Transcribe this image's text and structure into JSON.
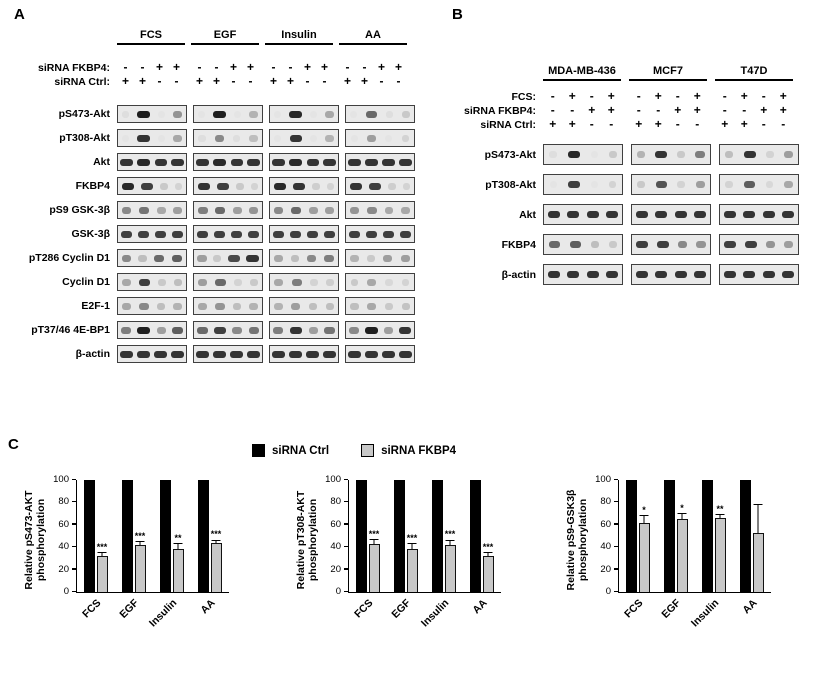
{
  "panelA": {
    "label": "A",
    "groups": [
      "FCS",
      "EGF",
      "Insulin",
      "AA"
    ],
    "condition_rows": [
      {
        "label": "siRNA FKBP4:",
        "pattern": [
          "-",
          "-",
          "+",
          "+"
        ]
      },
      {
        "label": "siRNA Ctrl:",
        "pattern": [
          "+",
          "+",
          "-",
          "-"
        ]
      }
    ],
    "blots": [
      {
        "label": "pS473-Akt",
        "lanes": [
          [
            0.05,
            0.95,
            0.02,
            0.4
          ],
          [
            0.02,
            0.95,
            0.02,
            0.25
          ],
          [
            0.02,
            0.9,
            0.02,
            0.3
          ],
          [
            0.02,
            0.6,
            0.05,
            0.15
          ]
        ]
      },
      {
        "label": "pT308-Akt",
        "lanes": [
          [
            0.02,
            0.85,
            0.02,
            0.3
          ],
          [
            0.05,
            0.45,
            0.05,
            0.2
          ],
          [
            0.02,
            0.85,
            0.02,
            0.25
          ],
          [
            0.02,
            0.35,
            0.02,
            0.1
          ]
        ]
      },
      {
        "label": "Akt",
        "lanes": [
          [
            0.85,
            0.9,
            0.85,
            0.85
          ],
          [
            0.85,
            0.9,
            0.85,
            0.85
          ],
          [
            0.85,
            0.9,
            0.85,
            0.85
          ],
          [
            0.85,
            0.85,
            0.85,
            0.85
          ]
        ]
      },
      {
        "label": "FKBP4",
        "lanes": [
          [
            0.9,
            0.8,
            0.15,
            0.1
          ],
          [
            0.85,
            0.8,
            0.15,
            0.1
          ],
          [
            0.9,
            0.85,
            0.12,
            0.1
          ],
          [
            0.85,
            0.8,
            0.12,
            0.1
          ]
        ]
      },
      {
        "label": "pS9 GSK-3β",
        "lanes": [
          [
            0.45,
            0.55,
            0.3,
            0.35
          ],
          [
            0.5,
            0.6,
            0.35,
            0.4
          ],
          [
            0.45,
            0.6,
            0.35,
            0.35
          ],
          [
            0.4,
            0.45,
            0.3,
            0.3
          ]
        ]
      },
      {
        "label": "GSK-3β",
        "lanes": [
          [
            0.8,
            0.8,
            0.8,
            0.8
          ],
          [
            0.8,
            0.8,
            0.8,
            0.8
          ],
          [
            0.8,
            0.8,
            0.8,
            0.8
          ],
          [
            0.8,
            0.8,
            0.8,
            0.8
          ]
        ]
      },
      {
        "label": "pT286 Cyclin D1",
        "lanes": [
          [
            0.45,
            0.2,
            0.6,
            0.65
          ],
          [
            0.35,
            0.15,
            0.75,
            0.85
          ],
          [
            0.3,
            0.2,
            0.45,
            0.5
          ],
          [
            0.25,
            0.15,
            0.35,
            0.35
          ]
        ]
      },
      {
        "label": "Cyclin D1",
        "lanes": [
          [
            0.3,
            0.8,
            0.15,
            0.2
          ],
          [
            0.35,
            0.6,
            0.1,
            0.15
          ],
          [
            0.3,
            0.5,
            0.1,
            0.12
          ],
          [
            0.15,
            0.3,
            0.08,
            0.1
          ]
        ]
      },
      {
        "label": "E2F-1",
        "lanes": [
          [
            0.3,
            0.45,
            0.2,
            0.25
          ],
          [
            0.3,
            0.4,
            0.2,
            0.25
          ],
          [
            0.25,
            0.35,
            0.2,
            0.2
          ],
          [
            0.2,
            0.3,
            0.15,
            0.18
          ]
        ]
      },
      {
        "label": "pT37/46 4E-BP1",
        "lanes": [
          [
            0.5,
            0.95,
            0.35,
            0.65
          ],
          [
            0.6,
            0.8,
            0.45,
            0.55
          ],
          [
            0.5,
            0.85,
            0.35,
            0.55
          ],
          [
            0.45,
            0.95,
            0.35,
            0.85
          ]
        ]
      },
      {
        "label": "β-actin",
        "lanes": [
          [
            0.85,
            0.85,
            0.85,
            0.85
          ],
          [
            0.85,
            0.85,
            0.85,
            0.85
          ],
          [
            0.85,
            0.85,
            0.85,
            0.85
          ],
          [
            0.85,
            0.85,
            0.85,
            0.85
          ]
        ]
      }
    ]
  },
  "panelB": {
    "label": "B",
    "groups": [
      "MDA-MB-436",
      "MCF7",
      "T47D"
    ],
    "condition_rows": [
      {
        "label": "FCS:",
        "pattern": [
          "-",
          "+",
          "-",
          "+"
        ]
      },
      {
        "label": "siRNA FKBP4:",
        "pattern": [
          "-",
          "-",
          "+",
          "+"
        ]
      },
      {
        "label": "siRNA Ctrl:",
        "pattern": [
          "+",
          "+",
          "-",
          "-"
        ]
      }
    ],
    "blots": [
      {
        "label": "pS473-Akt",
        "lanes": [
          [
            0.05,
            0.9,
            0.02,
            0.15
          ],
          [
            0.25,
            0.85,
            0.15,
            0.5
          ],
          [
            0.2,
            0.85,
            0.1,
            0.35
          ]
        ]
      },
      {
        "label": "pT308-Akt",
        "lanes": [
          [
            0.02,
            0.8,
            0.02,
            0.1
          ],
          [
            0.15,
            0.7,
            0.1,
            0.35
          ],
          [
            0.1,
            0.65,
            0.08,
            0.3
          ]
        ]
      },
      {
        "label": "Akt",
        "lanes": [
          [
            0.85,
            0.85,
            0.85,
            0.85
          ],
          [
            0.85,
            0.85,
            0.85,
            0.85
          ],
          [
            0.85,
            0.85,
            0.85,
            0.85
          ]
        ]
      },
      {
        "label": "FKBP4",
        "lanes": [
          [
            0.6,
            0.65,
            0.2,
            0.15
          ],
          [
            0.8,
            0.8,
            0.45,
            0.4
          ],
          [
            0.8,
            0.8,
            0.4,
            0.35
          ]
        ]
      },
      {
        "label": "β-actin",
        "lanes": [
          [
            0.85,
            0.85,
            0.85,
            0.85
          ],
          [
            0.85,
            0.85,
            0.85,
            0.85
          ],
          [
            0.85,
            0.85,
            0.85,
            0.85
          ]
        ]
      }
    ]
  },
  "panelC": {
    "label": "C",
    "legend": [
      {
        "label": "siRNA Ctrl",
        "color": "#000000"
      },
      {
        "label": "siRNA FKBP4",
        "color": "#c8c8c8"
      }
    ]
  },
  "chart_data": [
    {
      "type": "bar",
      "title": "",
      "categories": [
        "FCS",
        "EGF",
        "Insulin",
        "AA"
      ],
      "series": [
        {
          "name": "siRNA Ctrl",
          "color": "#000000",
          "values": [
            100,
            100,
            100,
            100
          ],
          "errors": [
            0,
            0,
            0,
            0
          ],
          "significance": [
            "",
            "",
            "",
            ""
          ]
        },
        {
          "name": "siRNA FKBP4",
          "color": "#c8c8c8",
          "values": [
            32,
            42,
            38,
            44
          ],
          "errors": [
            3,
            3,
            5,
            2
          ],
          "significance": [
            "***",
            "***",
            "**",
            "***"
          ]
        }
      ],
      "xlabel": "",
      "ylabel": "Relative pS473-AKT phosphorylation",
      "yticks": [
        0,
        20,
        40,
        60,
        80,
        100
      ],
      "ylim": [
        0,
        100
      ],
      "grid": false,
      "legend_position": "top-center-shared"
    },
    {
      "type": "bar",
      "title": "",
      "categories": [
        "FCS",
        "EGF",
        "Insulin",
        "AA"
      ],
      "series": [
        {
          "name": "siRNA Ctrl",
          "color": "#000000",
          "values": [
            100,
            100,
            100,
            100
          ],
          "errors": [
            0,
            0,
            0,
            0
          ],
          "significance": [
            "",
            "",
            "",
            ""
          ]
        },
        {
          "name": "siRNA FKBP4",
          "color": "#c8c8c8",
          "values": [
            43,
            38,
            42,
            32
          ],
          "errors": [
            3,
            5,
            4,
            3
          ],
          "significance": [
            "***",
            "***",
            "***",
            "***"
          ]
        }
      ],
      "xlabel": "",
      "ylabel": "Relative pT308-AKT phosphorylation",
      "yticks": [
        0,
        20,
        40,
        60,
        80,
        100
      ],
      "ylim": [
        0,
        100
      ],
      "grid": false,
      "legend_position": "top-center-shared"
    },
    {
      "type": "bar",
      "title": "",
      "categories": [
        "FCS",
        "EGF",
        "Insulin",
        "AA"
      ],
      "series": [
        {
          "name": "siRNA Ctrl",
          "color": "#000000",
          "values": [
            100,
            100,
            100,
            100
          ],
          "errors": [
            0,
            0,
            0,
            0
          ],
          "significance": [
            "",
            "",
            "",
            ""
          ]
        },
        {
          "name": "siRNA FKBP4",
          "color": "#c8c8c8",
          "values": [
            62,
            65,
            66,
            53
          ],
          "errors": [
            6,
            5,
            3,
            25
          ],
          "significance": [
            "*",
            "*",
            "**",
            ""
          ]
        }
      ],
      "xlabel": "",
      "ylabel": "Relative pS9-GSK3β phosphorylation",
      "yticks": [
        0,
        20,
        40,
        60,
        80,
        100
      ],
      "ylim": [
        0,
        100
      ],
      "grid": false,
      "legend_position": "top-center-shared"
    }
  ]
}
